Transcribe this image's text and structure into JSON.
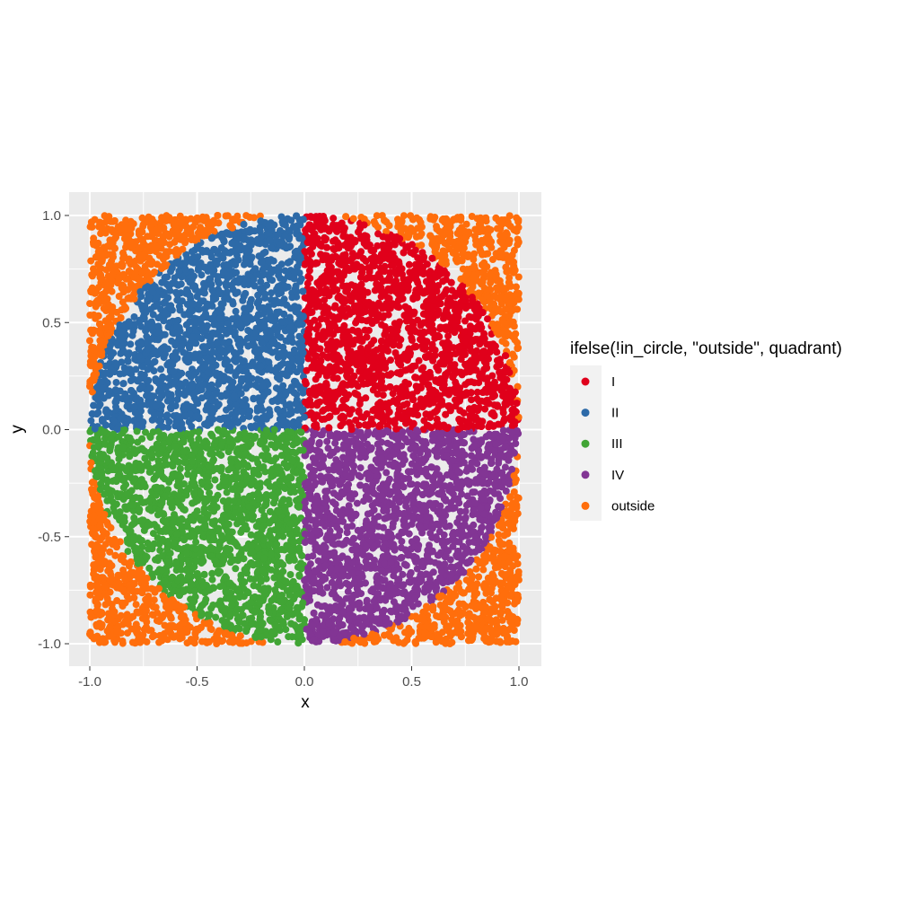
{
  "chart_data": {
    "type": "scatter",
    "title": "",
    "xlabel": "x",
    "ylabel": "y",
    "xlim": [
      -1.0,
      1.0
    ],
    "ylim": [
      -1.0,
      1.0
    ],
    "x_ticks": [
      -1.0,
      -0.5,
      0.0,
      0.5,
      1.0
    ],
    "y_ticks": [
      -1.0,
      -0.5,
      0.0,
      0.5,
      1.0
    ],
    "x_tick_labels": [
      "-1.0",
      "-0.5",
      "0.0",
      "0.5",
      "1.0"
    ],
    "y_tick_labels": [
      "-1.0",
      "-0.5",
      "0.0",
      "0.5",
      "1.0"
    ],
    "grid": true,
    "legend": {
      "title": "ifelse(!in_circle, \"outside\", quadrant)",
      "placement": "right",
      "entries": [
        {
          "label": "I",
          "color": "#e0001b"
        },
        {
          "label": "II",
          "color": "#2d6aa8"
        },
        {
          "label": "III",
          "color": "#41a535"
        },
        {
          "label": "IV",
          "color": "#823594"
        },
        {
          "label": "outside",
          "color": "#ff6e0c"
        }
      ]
    },
    "series": [
      {
        "name": "I",
        "color": "#e0001b",
        "region": "x >= 0, y >= 0, x^2 + y^2 <= 1"
      },
      {
        "name": "II",
        "color": "#2d6aa8",
        "region": "x < 0, y >= 0, x^2 + y^2 <= 1"
      },
      {
        "name": "III",
        "color": "#41a535",
        "region": "x < 0, y < 0, x^2 + y^2 <= 1"
      },
      {
        "name": "IV",
        "color": "#823594",
        "region": "x >= 0, y < 0, x^2 + y^2 <= 1"
      },
      {
        "name": "outside",
        "color": "#ff6e0c",
        "region": "x^2 + y^2 > 1"
      }
    ],
    "approx_point_count": 10000,
    "panel_background": "#ebebeb",
    "grid_color": "#ffffff"
  }
}
